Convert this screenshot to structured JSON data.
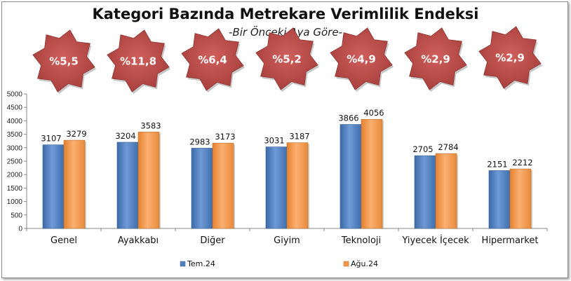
{
  "chart_data": {
    "type": "bar",
    "title": "Kategori Bazında Metrekare Verimlilik Endeksi",
    "subtitle": "-Bir Önceki Aya Göre-",
    "categories": [
      "Genel",
      "Ayakkabı",
      "Diğer",
      "Giyim",
      "Teknoloji",
      "Yiyecek İçecek",
      "Hipermarket"
    ],
    "series": [
      {
        "name": "Tem.24",
        "values": [
          3107,
          3204,
          2983,
          3031,
          3866,
          2705,
          2151
        ],
        "color": "#4f81bd"
      },
      {
        "name": "Ağu.24",
        "values": [
          3279,
          3583,
          3173,
          3187,
          4056,
          2784,
          2212
        ],
        "color": "#f79646"
      }
    ],
    "badges": [
      "%5,5",
      "%11,8",
      "%6,4",
      "%5,2",
      "%4,9",
      "%2,9",
      "%2,9"
    ],
    "badge_color": "#c0504d",
    "ylim": [
      0,
      5000
    ],
    "yticks": [
      0,
      500,
      1000,
      1500,
      2000,
      2500,
      3000,
      3500,
      4000,
      4500,
      5000
    ],
    "grid": false,
    "legend": "bottom"
  }
}
